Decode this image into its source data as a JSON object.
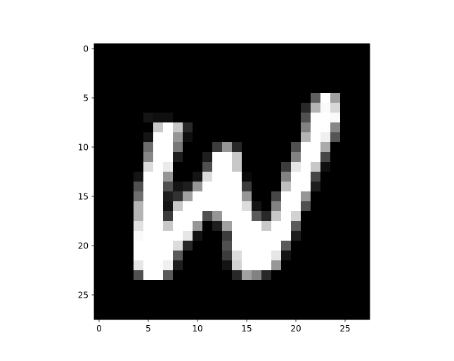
{
  "chart_data": {
    "type": "heatmap",
    "title": "",
    "xlabel": "",
    "ylabel": "",
    "colormap": "gray",
    "value_range": [
      0,
      255
    ],
    "xlim": [
      -0.5,
      27.5
    ],
    "ylim": [
      27.5,
      -0.5
    ],
    "x_ticks": [
      0,
      5,
      10,
      15,
      20,
      25
    ],
    "y_ticks": [
      0,
      5,
      10,
      15,
      20,
      25
    ],
    "x_tick_labels": [
      "0",
      "5",
      "10",
      "15",
      "20",
      "25"
    ],
    "y_tick_labels": [
      "0",
      "5",
      "10",
      "15",
      "20",
      "25"
    ],
    "grid": false,
    "values": [
      [
        0,
        0,
        0,
        0,
        0,
        0,
        0,
        0,
        0,
        0,
        0,
        0,
        0,
        0,
        0,
        0,
        0,
        0,
        0,
        0,
        0,
        0,
        0,
        0,
        0,
        0,
        0,
        0
      ],
      [
        0,
        0,
        0,
        0,
        0,
        0,
        0,
        0,
        0,
        0,
        0,
        0,
        0,
        0,
        0,
        0,
        0,
        0,
        0,
        0,
        0,
        0,
        0,
        0,
        0,
        0,
        0,
        0
      ],
      [
        0,
        0,
        0,
        0,
        0,
        0,
        0,
        0,
        0,
        0,
        0,
        0,
        0,
        0,
        0,
        0,
        0,
        0,
        0,
        0,
        0,
        0,
        0,
        0,
        0,
        0,
        0,
        0
      ],
      [
        0,
        0,
        0,
        0,
        0,
        0,
        0,
        0,
        0,
        0,
        0,
        0,
        0,
        0,
        0,
        0,
        0,
        0,
        0,
        0,
        0,
        0,
        0,
        0,
        0,
        0,
        0,
        0
      ],
      [
        0,
        0,
        0,
        0,
        0,
        0,
        0,
        0,
        0,
        0,
        0,
        0,
        0,
        0,
        0,
        0,
        0,
        0,
        0,
        0,
        0,
        0,
        0,
        0,
        0,
        0,
        0,
        0
      ],
      [
        0,
        0,
        0,
        0,
        0,
        0,
        0,
        0,
        0,
        0,
        0,
        0,
        0,
        0,
        0,
        0,
        0,
        0,
        0,
        0,
        0,
        0,
        95,
        255,
        160,
        0,
        0,
        0
      ],
      [
        0,
        0,
        0,
        0,
        0,
        0,
        0,
        0,
        0,
        0,
        0,
        0,
        0,
        0,
        0,
        0,
        0,
        0,
        0,
        0,
        0,
        40,
        180,
        250,
        215,
        0,
        0,
        0
      ],
      [
        0,
        0,
        0,
        0,
        0,
        20,
        15,
        15,
        0,
        0,
        0,
        0,
        0,
        0,
        0,
        0,
        0,
        0,
        0,
        0,
        0,
        80,
        255,
        255,
        250,
        0,
        0,
        0
      ],
      [
        0,
        0,
        0,
        0,
        0,
        0,
        200,
        255,
        200,
        40,
        0,
        0,
        0,
        0,
        0,
        0,
        0,
        0,
        0,
        0,
        0,
        130,
        255,
        255,
        135,
        0,
        0,
        0
      ],
      [
        0,
        0,
        0,
        0,
        0,
        20,
        255,
        255,
        150,
        15,
        0,
        0,
        0,
        0,
        0,
        0,
        0,
        0,
        0,
        0,
        0,
        180,
        255,
        240,
        85,
        0,
        0,
        0
      ],
      [
        0,
        0,
        0,
        0,
        0,
        110,
        255,
        255,
        120,
        0,
        0,
        0,
        60,
        150,
        40,
        0,
        0,
        0,
        0,
        0,
        80,
        255,
        255,
        170,
        0,
        0,
        0,
        0
      ],
      [
        0,
        0,
        0,
        0,
        0,
        135,
        255,
        255,
        30,
        0,
        0,
        30,
        255,
        255,
        200,
        0,
        0,
        0,
        0,
        0,
        130,
        255,
        255,
        70,
        0,
        0,
        0,
        0
      ],
      [
        0,
        0,
        0,
        0,
        0,
        220,
        255,
        235,
        0,
        0,
        0,
        80,
        255,
        255,
        200,
        0,
        0,
        0,
        0,
        60,
        230,
        255,
        200,
        15,
        0,
        0,
        0,
        0
      ],
      [
        0,
        0,
        0,
        0,
        20,
        255,
        255,
        150,
        0,
        0,
        20,
        220,
        255,
        255,
        255,
        10,
        0,
        0,
        0,
        130,
        255,
        255,
        70,
        0,
        0,
        0,
        0,
        0
      ],
      [
        0,
        0,
        0,
        0,
        80,
        255,
        255,
        80,
        20,
        30,
        150,
        255,
        255,
        255,
        255,
        60,
        0,
        0,
        0,
        190,
        255,
        255,
        30,
        0,
        0,
        0,
        0,
        0
      ],
      [
        0,
        0,
        0,
        0,
        110,
        255,
        255,
        30,
        50,
        160,
        255,
        255,
        255,
        255,
        255,
        150,
        0,
        0,
        70,
        255,
        255,
        150,
        0,
        0,
        0,
        0,
        0,
        0
      ],
      [
        0,
        0,
        0,
        0,
        180,
        255,
        255,
        20,
        200,
        255,
        255,
        255,
        255,
        255,
        255,
        220,
        20,
        0,
        130,
        255,
        255,
        80,
        0,
        0,
        0,
        0,
        0,
        0
      ],
      [
        0,
        0,
        0,
        0,
        180,
        255,
        255,
        60,
        255,
        255,
        255,
        80,
        150,
        255,
        255,
        255,
        90,
        40,
        200,
        255,
        210,
        0,
        0,
        0,
        0,
        0,
        0,
        0
      ],
      [
        0,
        0,
        0,
        0,
        225,
        255,
        255,
        200,
        255,
        255,
        150,
        0,
        30,
        160,
        255,
        255,
        255,
        200,
        255,
        255,
        90,
        0,
        0,
        0,
        0,
        0,
        0,
        0
      ],
      [
        0,
        0,
        0,
        0,
        250,
        255,
        255,
        255,
        255,
        230,
        20,
        0,
        0,
        60,
        255,
        255,
        255,
        255,
        255,
        255,
        30,
        0,
        0,
        0,
        0,
        0,
        0,
        0
      ],
      [
        0,
        0,
        0,
        0,
        255,
        255,
        255,
        255,
        220,
        40,
        0,
        0,
        0,
        80,
        255,
        255,
        255,
        255,
        255,
        90,
        0,
        0,
        0,
        0,
        0,
        0,
        0,
        0
      ],
      [
        0,
        0,
        0,
        0,
        255,
        255,
        255,
        255,
        90,
        0,
        0,
        0,
        0,
        60,
        220,
        255,
        255,
        255,
        230,
        20,
        0,
        0,
        0,
        0,
        0,
        0,
        0,
        0
      ],
      [
        0,
        0,
        0,
        0,
        230,
        255,
        255,
        240,
        30,
        0,
        0,
        0,
        0,
        20,
        210,
        255,
        255,
        255,
        150,
        0,
        0,
        0,
        0,
        0,
        0,
        0,
        0,
        0
      ],
      [
        0,
        0,
        0,
        0,
        80,
        255,
        255,
        90,
        0,
        0,
        0,
        0,
        0,
        0,
        40,
        160,
        130,
        40,
        0,
        0,
        0,
        0,
        0,
        0,
        0,
        0,
        0,
        0
      ],
      [
        0,
        0,
        0,
        0,
        0,
        0,
        0,
        0,
        0,
        0,
        0,
        0,
        0,
        0,
        0,
        0,
        0,
        0,
        0,
        0,
        0,
        0,
        0,
        0,
        0,
        0,
        0,
        0
      ],
      [
        0,
        0,
        0,
        0,
        0,
        0,
        0,
        0,
        0,
        0,
        0,
        0,
        0,
        0,
        0,
        0,
        0,
        0,
        0,
        0,
        0,
        0,
        0,
        0,
        0,
        0,
        0,
        0
      ],
      [
        0,
        0,
        0,
        0,
        0,
        0,
        0,
        0,
        0,
        0,
        0,
        0,
        0,
        0,
        0,
        0,
        0,
        0,
        0,
        0,
        0,
        0,
        0,
        0,
        0,
        0,
        0,
        0
      ],
      [
        0,
        0,
        0,
        0,
        0,
        0,
        0,
        0,
        0,
        0,
        0,
        0,
        0,
        0,
        0,
        0,
        0,
        0,
        0,
        0,
        0,
        0,
        0,
        0,
        0,
        0,
        0,
        0
      ]
    ]
  },
  "colors": {
    "background": "#ffffff",
    "axis": "#000000",
    "text": "#000000"
  }
}
